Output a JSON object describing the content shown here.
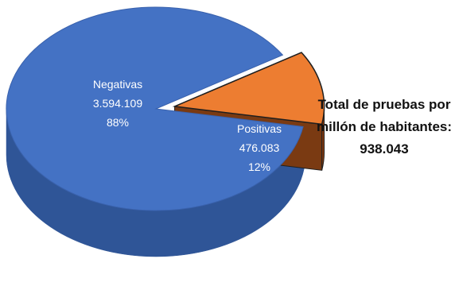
{
  "chart_data": {
    "type": "pie",
    "title": "",
    "slices": [
      {
        "name": "Negativas",
        "value_label": "3.594.109",
        "value": 3594109,
        "percent_label": "88%",
        "percent": 88,
        "color": "#4472c4"
      },
      {
        "name": "Positivas",
        "value_label": "476.083",
        "value": 476083,
        "percent_label": "12%",
        "percent": 12,
        "color": "#ed7d31"
      }
    ],
    "exploded": "Positivas",
    "style": "3d"
  },
  "annotation": {
    "line1": "Total de pruebas por",
    "line2": "millón de habitantes:",
    "line3": "938.043"
  },
  "colors": {
    "negativas_side": "#2f5597",
    "positivas_side": "#8a3d10",
    "outline": "#1f1f1f"
  }
}
